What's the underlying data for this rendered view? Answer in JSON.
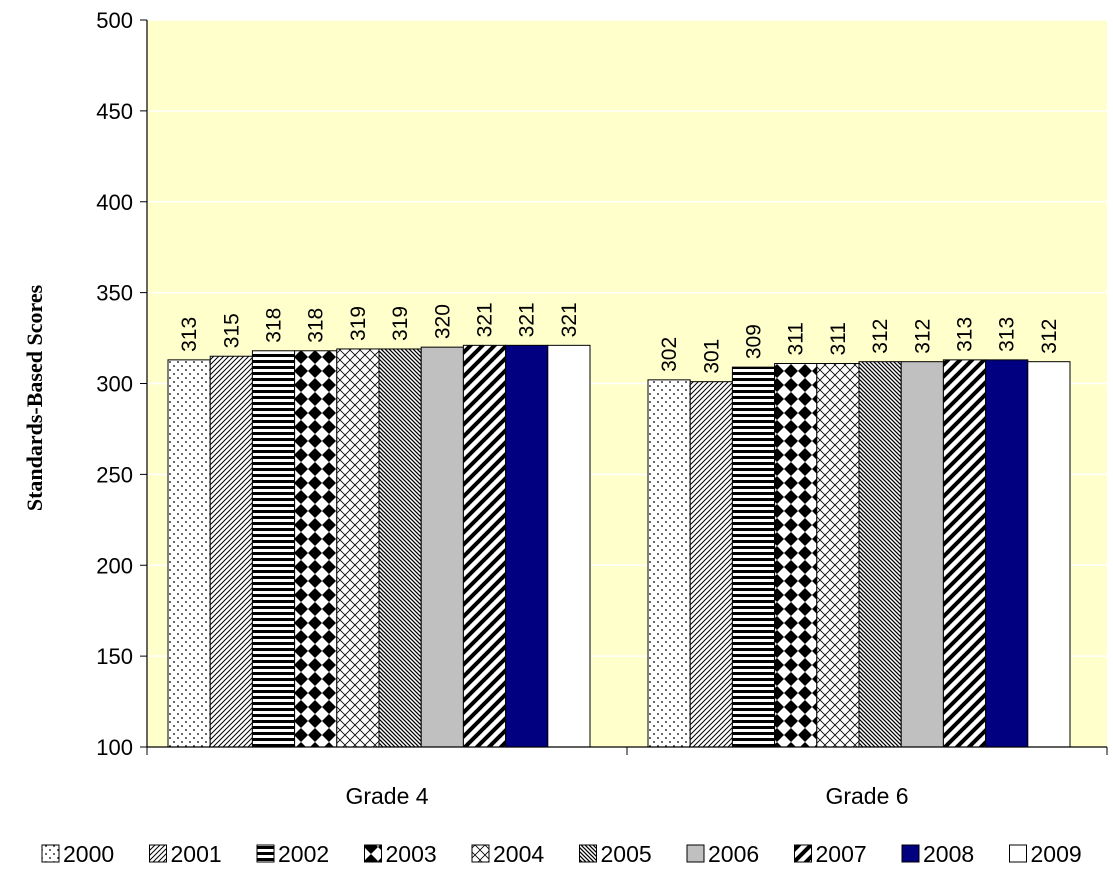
{
  "chart_data": {
    "type": "bar",
    "title": "",
    "xlabel": "",
    "ylabel": "Standards-Based Scores",
    "ylim": [
      100,
      500
    ],
    "yticks": [
      100,
      150,
      200,
      250,
      300,
      350,
      400,
      450,
      500
    ],
    "grid": true,
    "legend_position": "bottom",
    "plot_background": "#FFFFCC",
    "categories": [
      "Grade 4",
      "Grade 6"
    ],
    "series": [
      {
        "name": "2000",
        "values": [
          313,
          302
        ],
        "pattern": "dots",
        "color": "#000000"
      },
      {
        "name": "2001",
        "values": [
          315,
          301
        ],
        "pattern": "fine-diagonal",
        "color": "#000000"
      },
      {
        "name": "2002",
        "values": [
          318,
          309
        ],
        "pattern": "horizontal-stripes",
        "color": "#000000"
      },
      {
        "name": "2003",
        "values": [
          318,
          311
        ],
        "pattern": "diamond-checker",
        "color": "#000000"
      },
      {
        "name": "2004",
        "values": [
          319,
          311
        ],
        "pattern": "crosshatch",
        "color": "#000000"
      },
      {
        "name": "2005",
        "values": [
          319,
          312
        ],
        "pattern": "dense-back-diagonal",
        "color": "#000000"
      },
      {
        "name": "2006",
        "values": [
          320,
          312
        ],
        "pattern": "solid",
        "color": "#C0C0C0"
      },
      {
        "name": "2007",
        "values": [
          321,
          313
        ],
        "pattern": "wide-diagonal",
        "color": "#000000"
      },
      {
        "name": "2008",
        "values": [
          321,
          313
        ],
        "pattern": "solid",
        "color": "#000080"
      },
      {
        "name": "2009",
        "values": [
          321,
          312
        ],
        "pattern": "solid",
        "color": "#FFFFFF"
      }
    ]
  }
}
